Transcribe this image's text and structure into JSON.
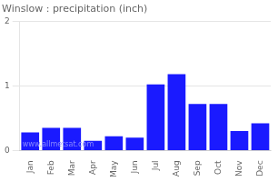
{
  "chart_data": {
    "type": "bar",
    "title": "Winslow : precipitation (inch)",
    "categories": [
      "Jan",
      "Feb",
      "Mar",
      "Apr",
      "May",
      "Jun",
      "Jul",
      "Aug",
      "Sep",
      "Oct",
      "Nov",
      "Dec"
    ],
    "values": [
      0.28,
      0.35,
      0.35,
      0.15,
      0.22,
      0.2,
      1.02,
      1.18,
      0.72,
      0.72,
      0.3,
      0.42
    ],
    "color": "#1a1aff",
    "ylim": [
      0,
      2
    ],
    "yticks": [
      0,
      1,
      2
    ],
    "grid": true,
    "annotations": [
      {
        "text": "www.allmetsat.com",
        "color": "#8888ff"
      }
    ]
  }
}
